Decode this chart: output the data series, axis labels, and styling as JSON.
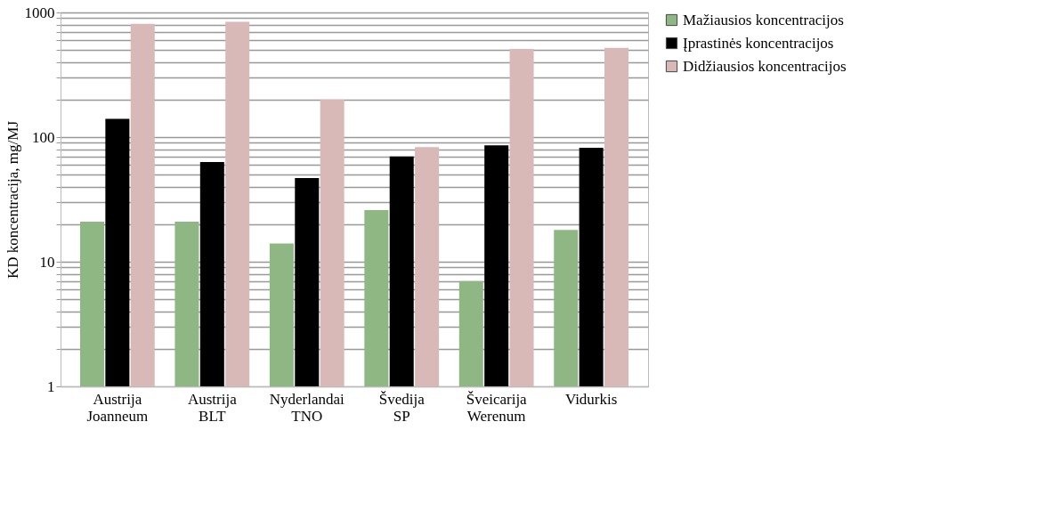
{
  "chart_data": {
    "type": "bar",
    "ylabel": "KD koncentracija, mg/MJ",
    "categories": [
      "Austrija Joanneum",
      "Austrija BLT",
      "Nyderlandai TNO",
      "Švedija SP",
      "Šveicarija Werenum",
      "Vidurkis"
    ],
    "series": [
      {
        "name": "Mažiausios koncentracijos",
        "color": "#8fb784",
        "values": [
          21,
          21,
          14,
          26,
          7,
          18
        ]
      },
      {
        "name": "Įprastinės koncentracijos",
        "color": "#000000",
        "values": [
          140,
          63,
          47,
          70,
          86,
          82
        ]
      },
      {
        "name": "Didžiausios koncentracijos",
        "color": "#d9b8b8",
        "values": [
          810,
          840,
          200,
          83,
          510,
          520
        ]
      }
    ],
    "log": true,
    "ylim": [
      1,
      1000
    ],
    "yticks": [
      1,
      {
        "value": 2,
        "label": null
      },
      {
        "value": 3,
        "label": null
      },
      {
        "value": 4,
        "label": null
      },
      {
        "value": 5,
        "label": null
      },
      {
        "value": 6,
        "label": null
      },
      {
        "value": 7,
        "label": null
      },
      {
        "value": 8,
        "label": null
      },
      {
        "value": 9,
        "label": null
      },
      10,
      {
        "value": 20,
        "label": null
      },
      {
        "value": 30,
        "label": null
      },
      {
        "value": 40,
        "label": null
      },
      {
        "value": 50,
        "label": null
      },
      {
        "value": 60,
        "label": null
      },
      {
        "value": 70,
        "label": null
      },
      {
        "value": 80,
        "label": null
      },
      {
        "value": 90,
        "label": null
      },
      100,
      {
        "value": 200,
        "label": null
      },
      {
        "value": 300,
        "label": null
      },
      {
        "value": 400,
        "label": null
      },
      {
        "value": 500,
        "label": null
      },
      {
        "value": 600,
        "label": null
      },
      {
        "value": 700,
        "label": null
      },
      {
        "value": 800,
        "label": null
      },
      {
        "value": 900,
        "label": null
      },
      1000
    ],
    "grid": "y",
    "legend": "top right"
  }
}
